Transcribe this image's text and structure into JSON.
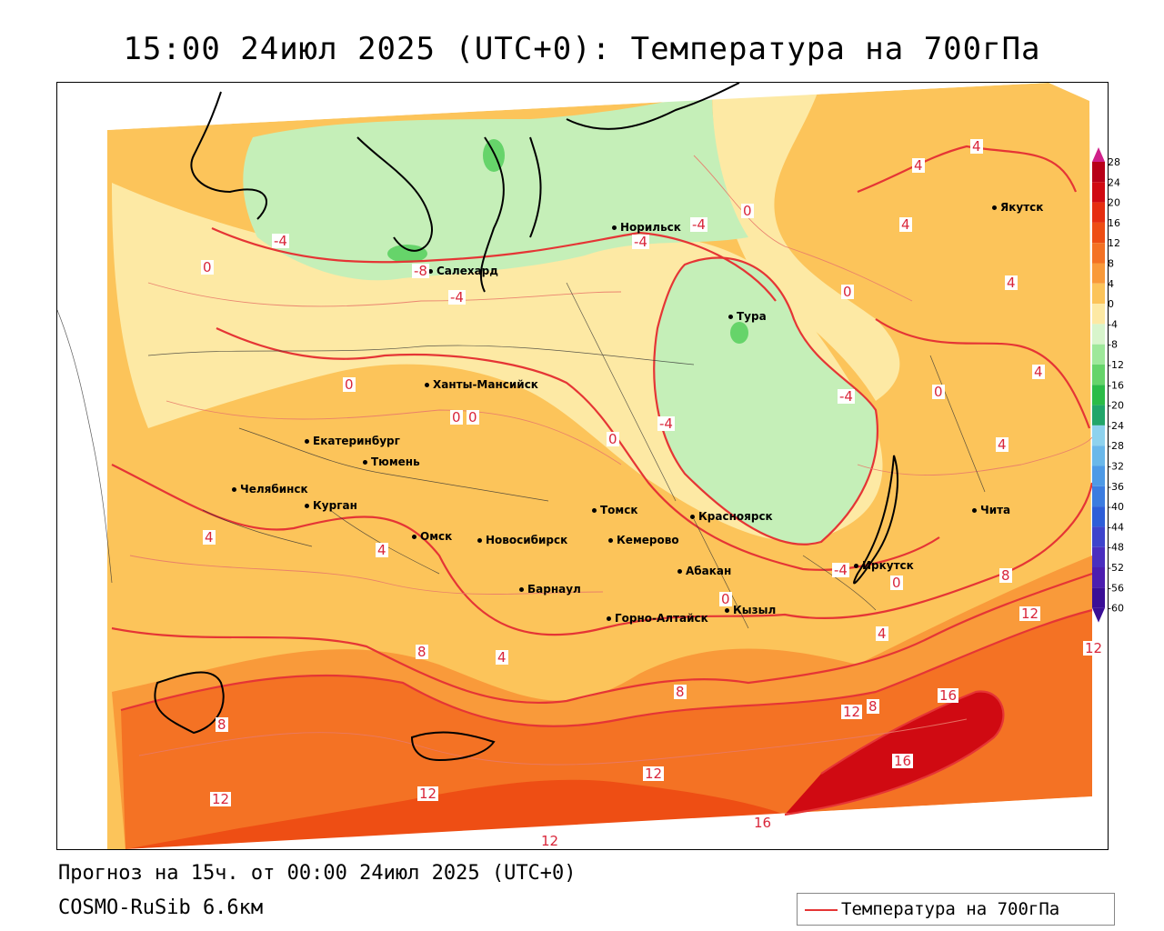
{
  "title": "15:00 24июл 2025 (UTC+0): Температура на 700гПа",
  "subtitle_forecast": "Прогноз на 15ч. от 00:00 24июл 2025 (UTC+0)",
  "model": "COSMO-RuSib 6.6км",
  "legend_label": "Температура на 700гПа",
  "colorbar": {
    "ticks": [
      "28",
      "24",
      "20",
      "16",
      "12",
      "8",
      "4",
      "0",
      "-4",
      "-8",
      "-12",
      "-16",
      "-20",
      "-24",
      "-28",
      "-32",
      "-36",
      "-40",
      "-44",
      "-48",
      "-52",
      "-56",
      "-60"
    ],
    "colors": [
      "#b80018",
      "#d00a12",
      "#e62e10",
      "#ee4e14",
      "#f47224",
      "#f99a3a",
      "#fcc45a",
      "#fde9a4",
      "#d8f5cc",
      "#9ee89a",
      "#66d46a",
      "#2cbc48",
      "#22a66a",
      "#8ed2ee",
      "#6ab8ea",
      "#4e9ae6",
      "#3c7ce0",
      "#2e5ed8",
      "#3e44cc",
      "#4a2ebf",
      "#4c1db0",
      "#3a0e96"
    ]
  },
  "cities": [
    {
      "name": "Норильск"
    },
    {
      "name": "Якутск"
    },
    {
      "name": "Салехард"
    },
    {
      "name": "Тура"
    },
    {
      "name": "Ханты-Мансийск"
    },
    {
      "name": "Екатеринбург"
    },
    {
      "name": "Тюмень"
    },
    {
      "name": "Челябинск"
    },
    {
      "name": "Курган"
    },
    {
      "name": "Омск"
    },
    {
      "name": "Новосибирск"
    },
    {
      "name": "Томск"
    },
    {
      "name": "Кемерово"
    },
    {
      "name": "Красноярск"
    },
    {
      "name": "Абакан"
    },
    {
      "name": "Барнаул"
    },
    {
      "name": "Горно-Алтайск"
    },
    {
      "name": "Кызыл"
    },
    {
      "name": "Иркутск"
    },
    {
      "name": "Чита"
    }
  ],
  "contour_labels": [
    "4",
    "4",
    "4",
    "-4",
    "-4",
    "0",
    "-4",
    "-8",
    "-4",
    "0",
    "0",
    "4",
    "-4",
    "0",
    "0",
    "0",
    "-4",
    "0",
    "4",
    "4",
    "4",
    "0",
    "0",
    "4",
    "8",
    "-4",
    "0",
    "12",
    "12",
    "4",
    "8",
    "8",
    "4",
    "12",
    "8",
    "16",
    "8",
    "16",
    "12",
    "12",
    "12",
    "12",
    "16",
    "12"
  ]
}
